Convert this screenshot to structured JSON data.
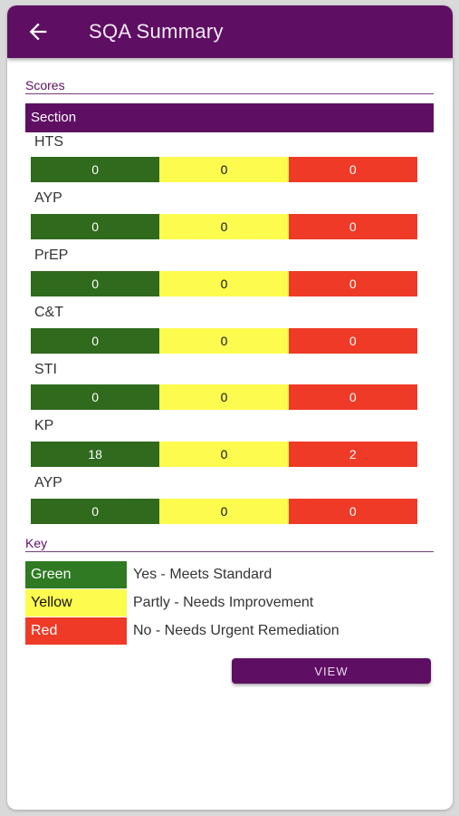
{
  "header": {
    "title": "SQA Summary",
    "back_icon": "arrow-left-icon"
  },
  "scores": {
    "heading": "Scores",
    "section_header": "Section",
    "rows": [
      {
        "label": "HTS",
        "green": "0",
        "yellow": "0",
        "red": "0"
      },
      {
        "label": "AYP",
        "green": "0",
        "yellow": "0",
        "red": "0"
      },
      {
        "label": "PrEP",
        "green": "0",
        "yellow": "0",
        "red": "0"
      },
      {
        "label": "C&T",
        "green": "0",
        "yellow": "0",
        "red": "0"
      },
      {
        "label": "STI",
        "green": "0",
        "yellow": "0",
        "red": "0"
      },
      {
        "label": "KP",
        "green": "18",
        "yellow": "0",
        "red": "2"
      },
      {
        "label": "AYP",
        "green": "0",
        "yellow": "0",
        "red": "0"
      }
    ]
  },
  "key": {
    "heading": "Key",
    "items": [
      {
        "name": "Green",
        "description": "Yes - Meets Standard",
        "color": "#2f7a22"
      },
      {
        "name": "Yellow",
        "description": "Partly - Needs Improvement",
        "color": "#fdfc4e"
      },
      {
        "name": "Red",
        "description": "No - Needs Urgent Remediation",
        "color": "#ee3a26"
      }
    ]
  },
  "actions": {
    "view_label": "VIEW"
  },
  "colors": {
    "primary": "#5e0f63",
    "green": "#2f6a1d",
    "yellow": "#fdfc4e",
    "red": "#ee3a26"
  }
}
